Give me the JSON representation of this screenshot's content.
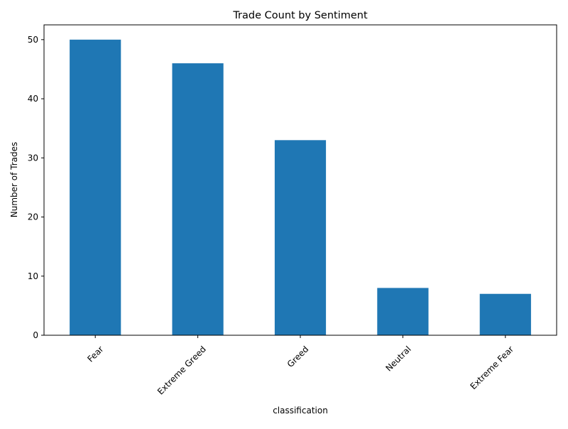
{
  "chart_data": {
    "type": "bar",
    "title": "Trade Count by Sentiment",
    "xlabel": "classification",
    "ylabel": "Number of Trades",
    "categories": [
      "Fear",
      "Extreme Greed",
      "Greed",
      "Neutral",
      "Extreme Fear"
    ],
    "values": [
      50,
      46,
      33,
      8,
      7
    ],
    "ylim": [
      0,
      52.5
    ],
    "yticks": [
      0,
      10,
      20,
      30,
      40,
      50
    ],
    "grid": false,
    "legend": "none",
    "bar_color": "#1f77b4",
    "xtick_rotation_deg": 45
  }
}
